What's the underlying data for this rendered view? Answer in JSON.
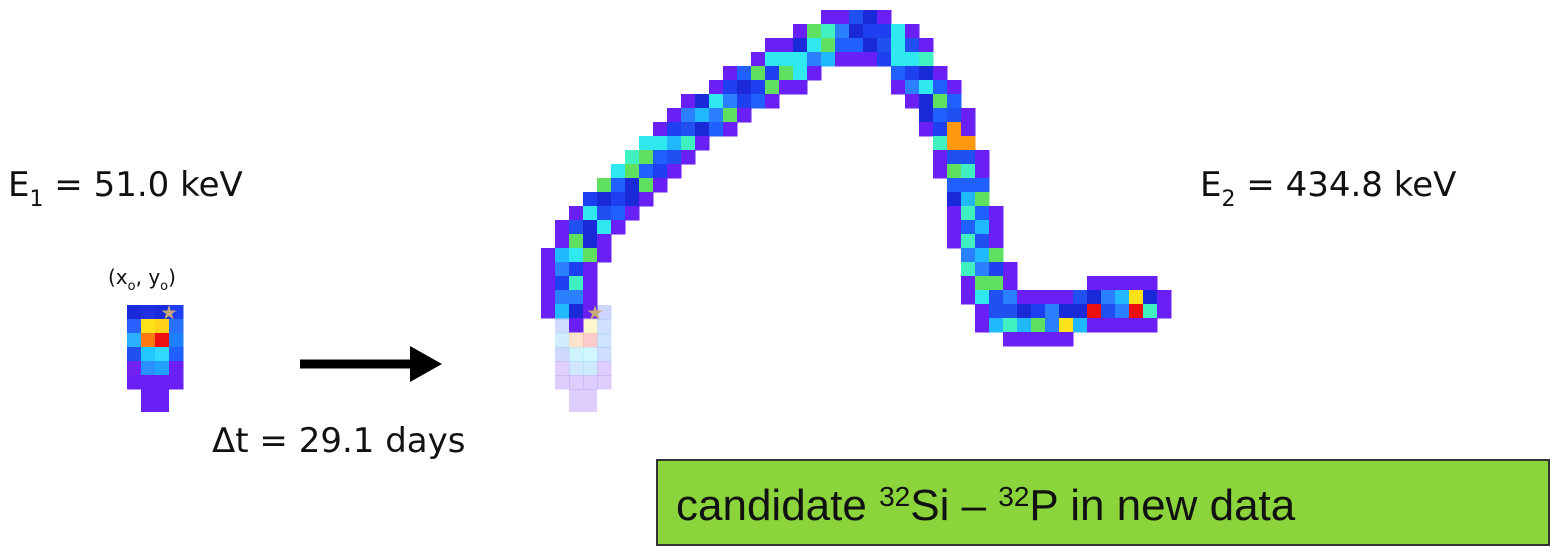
{
  "left_label": {
    "symbol": "E",
    "subscript": "1",
    "text": " = 51.0 keV"
  },
  "origin_label": {
    "open": "(x",
    "sub_x": "o",
    "mid": ", y",
    "sub_y": "o",
    "close": ")"
  },
  "time_label": "Δt = 29.1 days",
  "right_label": {
    "symbol": "E",
    "subscript": "2",
    "text": " = 434.8 keV"
  },
  "caption": {
    "pre": "candidate ",
    "sup1": "32",
    "mid": "Si – ",
    "sup2": "32",
    "post": "P in new data"
  }
}
